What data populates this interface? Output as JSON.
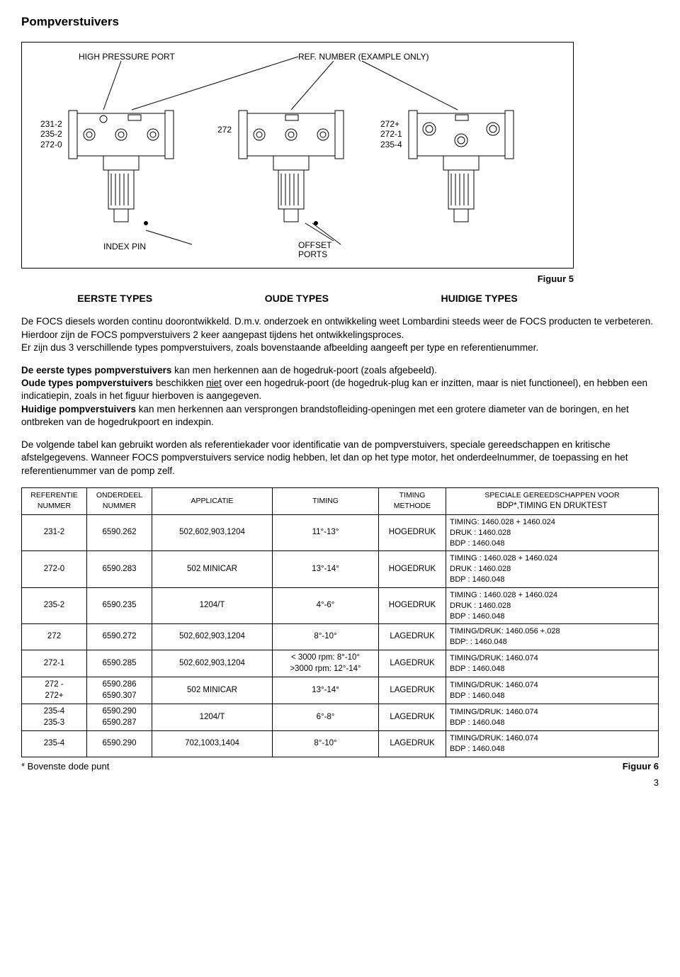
{
  "title": "Pompverstuivers",
  "diagram": {
    "callouts": {
      "high_pressure_port": "HIGH PRESSURE PORT",
      "ref_number": "REF. NUMBER (EXAMPLE ONLY)",
      "index_pin": "INDEX PIN",
      "offset_ports": "OFFSET PORTS"
    },
    "unit1_labels": [
      "231-2",
      "235-2",
      "272-0"
    ],
    "unit2_labels": [
      "272"
    ],
    "unit3_labels": [
      "272+",
      "272-1",
      "235-4"
    ],
    "fig_caption": "Figuur 5"
  },
  "types_row": {
    "col1": "EERSTE TYPES",
    "col2": "OUDE TYPES",
    "col3": "HUIDIGE TYPES"
  },
  "para1_a": "De FOCS diesels worden continu doorontwikkeld. D.m.v. onderzoek en ontwikkeling weet Lombardini steeds weer de FOCS producten te verbeteren. Hierdoor zijn de FOCS pompverstuivers 2 keer aangepast tijdens het ontwikkelingsproces.",
  "para1_b": "Er zijn dus 3 verschillende types pompverstuivers, zoals bovenstaande afbeelding aangeeft per type en referentienummer.",
  "para2_prefix": "De eerste types pompverstuivers",
  "para2_rest": " kan men herkennen aan de hogedruk-poort (zoals afgebeeld).",
  "para2b_prefix": "Oude types pompverstuivers",
  "para2b_mid": "  beschikken ",
  "para2b_niet": "niet",
  "para2b_rest": " over een hogedruk-poort (de hogedruk-plug kan er inzitten, maar is niet functioneel), en hebben een indicatiepin, zoals in het figuur hierboven is aangegeven.",
  "para2c_prefix": "Huidige pompverstuivers",
  "para2c_rest": " kan men herkennen aan versprongen brandstofleiding-openingen met een grotere diameter van de boringen, en het ontbreken van de hogedrukpoort en indexpin.",
  "para3": "De volgende tabel kan gebruikt worden als referentiekader voor identificatie van de pompverstuivers, speciale gereedschappen en kritische afstelgegevens. Wanneer FOCS pompverstuivers service nodig hebben, let dan op het type motor, het onderdeelnummer, de toepassing en het referentienummer van de pomp zelf.",
  "table": {
    "headers": {
      "ref": "REFERENTIE NUMMER",
      "part": "ONDERDEEL NUMMER",
      "app": "APPLICATIE",
      "timing": "TIMING",
      "method": "TIMING METHODE",
      "tools_line1": "SPECIALE GEREEDSCHAPPEN VOOR",
      "tools_line2": "BDP*,TIMING EN DRUKTEST"
    },
    "rows": [
      {
        "ref": "231-2",
        "part": "6590.262",
        "app": "502,602,903,1204",
        "timing": "11°-13°",
        "method": "HOGEDRUK",
        "tools": [
          "TIMING: 1460.028 + 1460.024",
          "DRUK  : 1460.028",
          "BDP   : 1460.048"
        ]
      },
      {
        "ref": "272-0",
        "part": "6590.283",
        "app": "502 MINICAR",
        "timing": "13°-14°",
        "method": "HOGEDRUK",
        "tools": [
          "TIMING : 1460.028 + 1460.024",
          "DRUK  : 1460.028",
          "BDP   : 1460.048"
        ]
      },
      {
        "ref": "235-2",
        "part": "6590.235",
        "app": "1204/T",
        "timing": "4°-6°",
        "method": "HOGEDRUK",
        "tools": [
          "TIMING : 1460.028 + 1460.024",
          "DRUK  : 1460.028",
          "BDP   : 1460.048"
        ]
      },
      {
        "ref": "272",
        "part": "6590.272",
        "app": "502,602,903,1204",
        "timing": "8°-10°",
        "method": "LAGEDRUK",
        "tools": [
          "TIMING/DRUK: 1460.056 +.028",
          "BDP:   : 1460.048"
        ]
      },
      {
        "ref": "272-1",
        "part": "6590.285",
        "app": "502,602,903,1204",
        "timing": "< 3000 rpm: 8°-10°\n>3000 rpm: 12°-14°",
        "method": "LAGEDRUK",
        "tools": [
          "TIMING/DRUK: 1460.074",
          "BDP   : 1460.048"
        ]
      },
      {
        "ref": "272 -\n272+",
        "part": "6590.286\n6590.307",
        "app": "502 MINICAR",
        "timing": "13°-14°",
        "method": "LAGEDRUK",
        "tools": [
          "TIMING/DRUK: 1460.074",
          "BDP   : 1460.048"
        ]
      },
      {
        "ref": "235-4\n235-3",
        "part": "6590.290\n6590.287",
        "app": "1204/T",
        "timing": "6°-8°",
        "method": "LAGEDRUK",
        "tools": [
          "TIMING/DRUK: 1460.074",
          "BDP   : 1460.048"
        ]
      },
      {
        "ref": "235-4",
        "part": "6590.290",
        "app": "702,1003,1404",
        "timing": "8°-10°",
        "method": "LAGEDRUK",
        "tools": [
          "TIMING/DRUK: 1460.074",
          "BDP   : 1460.048"
        ]
      }
    ]
  },
  "footnote_left": "* Bovenste dode punt",
  "footnote_right": "Figuur 6",
  "page_number": "3",
  "colors": {
    "stroke": "#000000",
    "fill": "#ffffff"
  }
}
